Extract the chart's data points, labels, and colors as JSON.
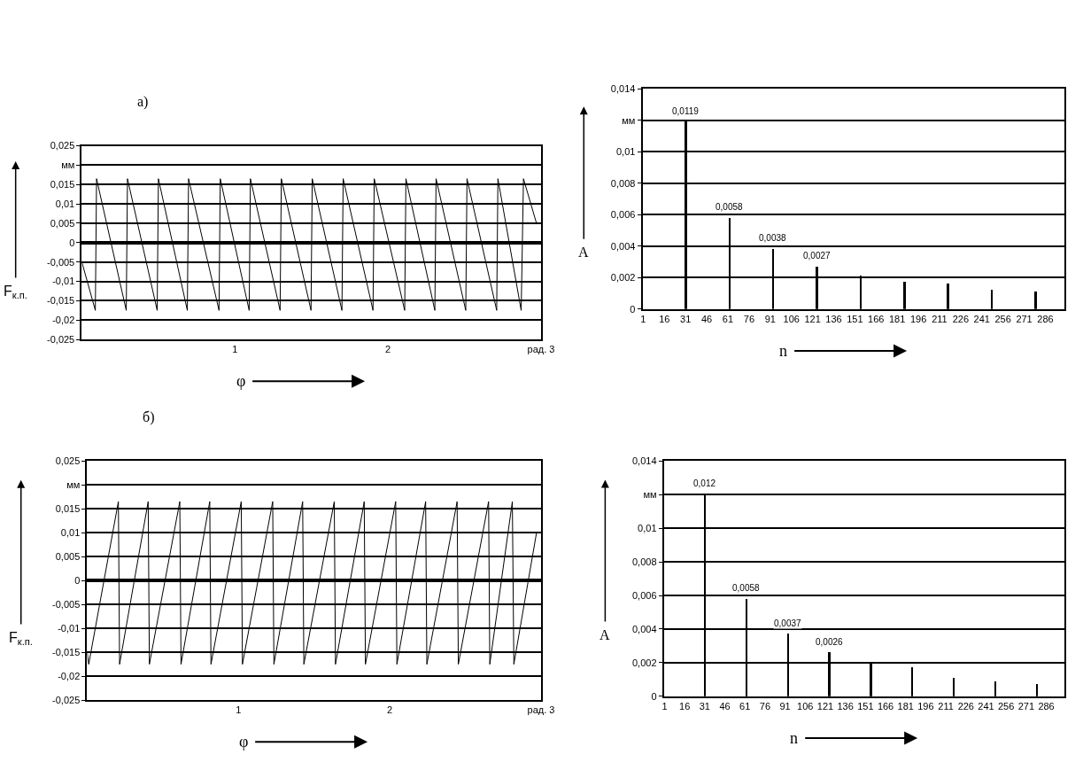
{
  "chart_data": [
    {
      "type": "line",
      "title": "а)",
      "xlabel": "φ",
      "ylabel": "F$_{к.п.}$",
      "color": "#000000",
      "marker": "none",
      "grid": "y",
      "x": [
        0,
        0.088,
        0.096,
        0.29,
        0.298,
        0.492,
        0.5,
        0.689,
        0.697,
        0.896,
        0.904,
        1.093,
        1.101,
        1.295,
        1.303,
        1.497,
        1.505,
        1.699,
        1.707,
        1.902,
        1.91,
        2.109,
        2.117,
        2.306,
        2.314,
        2.508,
        2.516,
        2.71,
        2.718,
        2.87,
        2.885,
        2.97
      ],
      "values": [
        -0.005,
        -0.0175,
        0.0165,
        -0.0175,
        0.0165,
        -0.0175,
        0.0165,
        -0.0175,
        0.0165,
        -0.0175,
        0.0165,
        -0.0175,
        0.0165,
        -0.0175,
        0.0165,
        -0.0175,
        0.0165,
        -0.0175,
        0.0165,
        -0.0175,
        0.0165,
        -0.0175,
        0.0165,
        -0.0175,
        0.0165,
        -0.0175,
        0.0165,
        -0.0175,
        0.0165,
        -0.0175,
        0.0165,
        0.005
      ],
      "xlim": [
        0,
        3
      ],
      "xticks": [
        1,
        2,
        {
          "value": 3,
          "label": "рад. 3"
        }
      ],
      "ylim": [
        -0.025,
        0.025
      ],
      "yticks": [
        {
          "value": -0.025,
          "label": "-0,025"
        },
        {
          "value": -0.02,
          "label": "-0,02"
        },
        {
          "value": -0.015,
          "label": "-0,015"
        },
        {
          "value": -0.01,
          "label": "-0,01"
        },
        {
          "value": -0.005,
          "label": "-0,005"
        },
        0,
        {
          "value": 0.005,
          "label": "0,005"
        },
        {
          "value": 0.01,
          "label": "0,01"
        },
        {
          "value": 0.015,
          "label": "0,015"
        },
        {
          "value": 0.02,
          "label": "мм"
        },
        {
          "value": 0.025,
          "label": "0,025"
        }
      ]
    },
    {
      "type": "bar",
      "xlabel": "n",
      "ylabel": "A",
      "color": "#000000",
      "grid": "y",
      "x": [
        31,
        62,
        93,
        124,
        155,
        186,
        217,
        248,
        279
      ],
      "values": [
        0.0119,
        0.0058,
        0.0038,
        0.0027,
        0.0021,
        0.0017,
        0.0016,
        0.0012,
        0.0011
      ],
      "value_labels": [
        "0,0119",
        "0,0058",
        "0,0038",
        "0,0027",
        null,
        null,
        null,
        null,
        null
      ],
      "xlim": [
        0.5,
        299.5
      ],
      "xticks": [
        1,
        16,
        31,
        46,
        61,
        76,
        91,
        106,
        121,
        136,
        151,
        166,
        181,
        196,
        211,
        226,
        241,
        256,
        271,
        286
      ],
      "ylim": [
        0,
        0.014
      ],
      "yticks": [
        0,
        {
          "value": 0.002,
          "label": "0,002"
        },
        {
          "value": 0.004,
          "label": "0,004"
        },
        {
          "value": 0.006,
          "label": "0,006"
        },
        {
          "value": 0.008,
          "label": "0,008"
        },
        {
          "value": 0.01,
          "label": "0,01"
        },
        {
          "value": 0.012,
          "label": "мм"
        },
        {
          "value": 0.014,
          "label": "0,014"
        }
      ]
    },
    {
      "type": "line",
      "title": "б)",
      "xlabel": "φ",
      "ylabel": "F$_{к.п.}$",
      "color": "#000000",
      "marker": "none",
      "grid": "y",
      "x": [
        0,
        0.01,
        0.206,
        0.214,
        0.403,
        0.411,
        0.612,
        0.62,
        0.81,
        0.818,
        1.018,
        1.026,
        1.226,
        1.234,
        1.424,
        1.432,
        1.633,
        1.641,
        1.831,
        1.839,
        2.039,
        2.047,
        2.237,
        2.245,
        2.445,
        2.453,
        2.653,
        2.661,
        2.81,
        2.82,
        2.97
      ],
      "values": [
        -0.015,
        -0.0175,
        0.0165,
        -0.0175,
        0.0165,
        -0.0175,
        0.0165,
        -0.0175,
        0.0165,
        -0.0175,
        0.0165,
        -0.0175,
        0.0165,
        -0.0175,
        0.0165,
        -0.0175,
        0.0165,
        -0.0175,
        0.0165,
        -0.0175,
        0.0165,
        -0.0175,
        0.0165,
        -0.0175,
        0.0165,
        -0.0175,
        0.0165,
        -0.0175,
        0.0165,
        -0.0175,
        0.01
      ],
      "xlim": [
        0,
        3
      ],
      "xticks": [
        1,
        2,
        {
          "value": 3,
          "label": "рад. 3"
        }
      ],
      "ylim": [
        -0.025,
        0.025
      ],
      "yticks": [
        {
          "value": -0.025,
          "label": "-0,025"
        },
        {
          "value": -0.02,
          "label": "-0,02"
        },
        {
          "value": -0.015,
          "label": "-0,015"
        },
        {
          "value": -0.01,
          "label": "-0,01"
        },
        {
          "value": -0.005,
          "label": "-0,005"
        },
        0,
        {
          "value": 0.005,
          "label": "0,005"
        },
        {
          "value": 0.01,
          "label": "0,01"
        },
        {
          "value": 0.015,
          "label": "0,015"
        },
        {
          "value": 0.02,
          "label": "мм"
        },
        {
          "value": 0.025,
          "label": "0,025"
        }
      ]
    },
    {
      "type": "bar",
      "xlabel": "n",
      "ylabel": "A",
      "color": "#000000",
      "grid": "y",
      "x": [
        31,
        62,
        93,
        124,
        155,
        186,
        217,
        248,
        279
      ],
      "values": [
        0.012,
        0.0058,
        0.0037,
        0.0026,
        0.002,
        0.0017,
        0.0011,
        0.0009,
        0.0007
      ],
      "value_labels": [
        "0,012",
        "0,0058",
        "0,0037",
        "0,0026",
        null,
        null,
        null,
        null,
        null
      ],
      "xlim": [
        0.5,
        299.5
      ],
      "xticks": [
        1,
        16,
        31,
        46,
        61,
        76,
        91,
        106,
        121,
        136,
        151,
        166,
        181,
        196,
        211,
        226,
        241,
        256,
        271,
        286
      ],
      "ylim": [
        0,
        0.014
      ],
      "yticks": [
        0,
        {
          "value": 0.002,
          "label": "0,002"
        },
        {
          "value": 0.004,
          "label": "0,004"
        },
        {
          "value": 0.006,
          "label": "0,006"
        },
        {
          "value": 0.008,
          "label": "0,008"
        },
        {
          "value": 0.01,
          "label": "0,01"
        },
        {
          "value": 0.012,
          "label": "мм"
        },
        {
          "value": 0.014,
          "label": "0,014"
        }
      ]
    }
  ]
}
